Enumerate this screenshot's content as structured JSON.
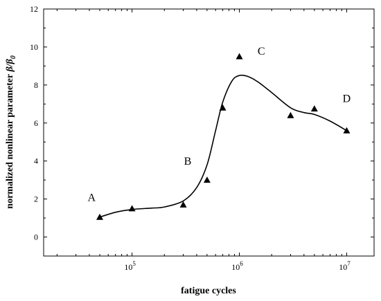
{
  "chart_data": {
    "type": "scatter",
    "xlabel": "fatigue cycles",
    "ylabel_main": "normalized nonlinear parameter ",
    "ylabel_math": "β/β",
    "ylabel_sub": "0",
    "x_scale": "log",
    "xlim": [
      15000,
      18000000
    ],
    "ylim": [
      -1,
      12
    ],
    "y_ticks": [
      0,
      2,
      4,
      6,
      8,
      10,
      12
    ],
    "x_major_ticks": [
      {
        "value": 100000,
        "base": "10",
        "exp": "5"
      },
      {
        "value": 1000000,
        "base": "10",
        "exp": "6"
      },
      {
        "value": 10000000,
        "base": "10",
        "exp": "7"
      }
    ],
    "grid": false,
    "series": [
      {
        "marker": "triangle",
        "color": "#000000",
        "points": [
          {
            "x": 50000,
            "y": 1.05
          },
          {
            "x": 100000,
            "y": 1.5
          },
          {
            "x": 300000,
            "y": 1.7
          },
          {
            "x": 500000,
            "y": 3.0
          },
          {
            "x": 700000,
            "y": 6.8
          },
          {
            "x": 1000000,
            "y": 9.5
          },
          {
            "x": 3000000,
            "y": 6.4
          },
          {
            "x": 5000000,
            "y": 6.75
          },
          {
            "x": 10000000,
            "y": 5.6
          }
        ]
      }
    ],
    "fit_curve": [
      [
        50000,
        1.05
      ],
      [
        70000,
        1.3
      ],
      [
        100000,
        1.45
      ],
      [
        150000,
        1.52
      ],
      [
        200000,
        1.58
      ],
      [
        300000,
        1.9
      ],
      [
        400000,
        2.6
      ],
      [
        500000,
        3.8
      ],
      [
        600000,
        5.6
      ],
      [
        700000,
        7.1
      ],
      [
        850000,
        8.2
      ],
      [
        1000000,
        8.5
      ],
      [
        1200000,
        8.45
      ],
      [
        1500000,
        8.15
      ],
      [
        2000000,
        7.6
      ],
      [
        3000000,
        6.8
      ],
      [
        4000000,
        6.55
      ],
      [
        5000000,
        6.45
      ],
      [
        7000000,
        6.1
      ],
      [
        10000000,
        5.6
      ]
    ],
    "annotations": [
      {
        "text": "A",
        "x": 42000,
        "y": 1.9
      },
      {
        "text": "B",
        "x": 330000,
        "y": 3.8
      },
      {
        "text": "C",
        "x": 1600000,
        "y": 9.6
      },
      {
        "text": "D",
        "x": 10000000,
        "y": 7.1
      }
    ]
  }
}
